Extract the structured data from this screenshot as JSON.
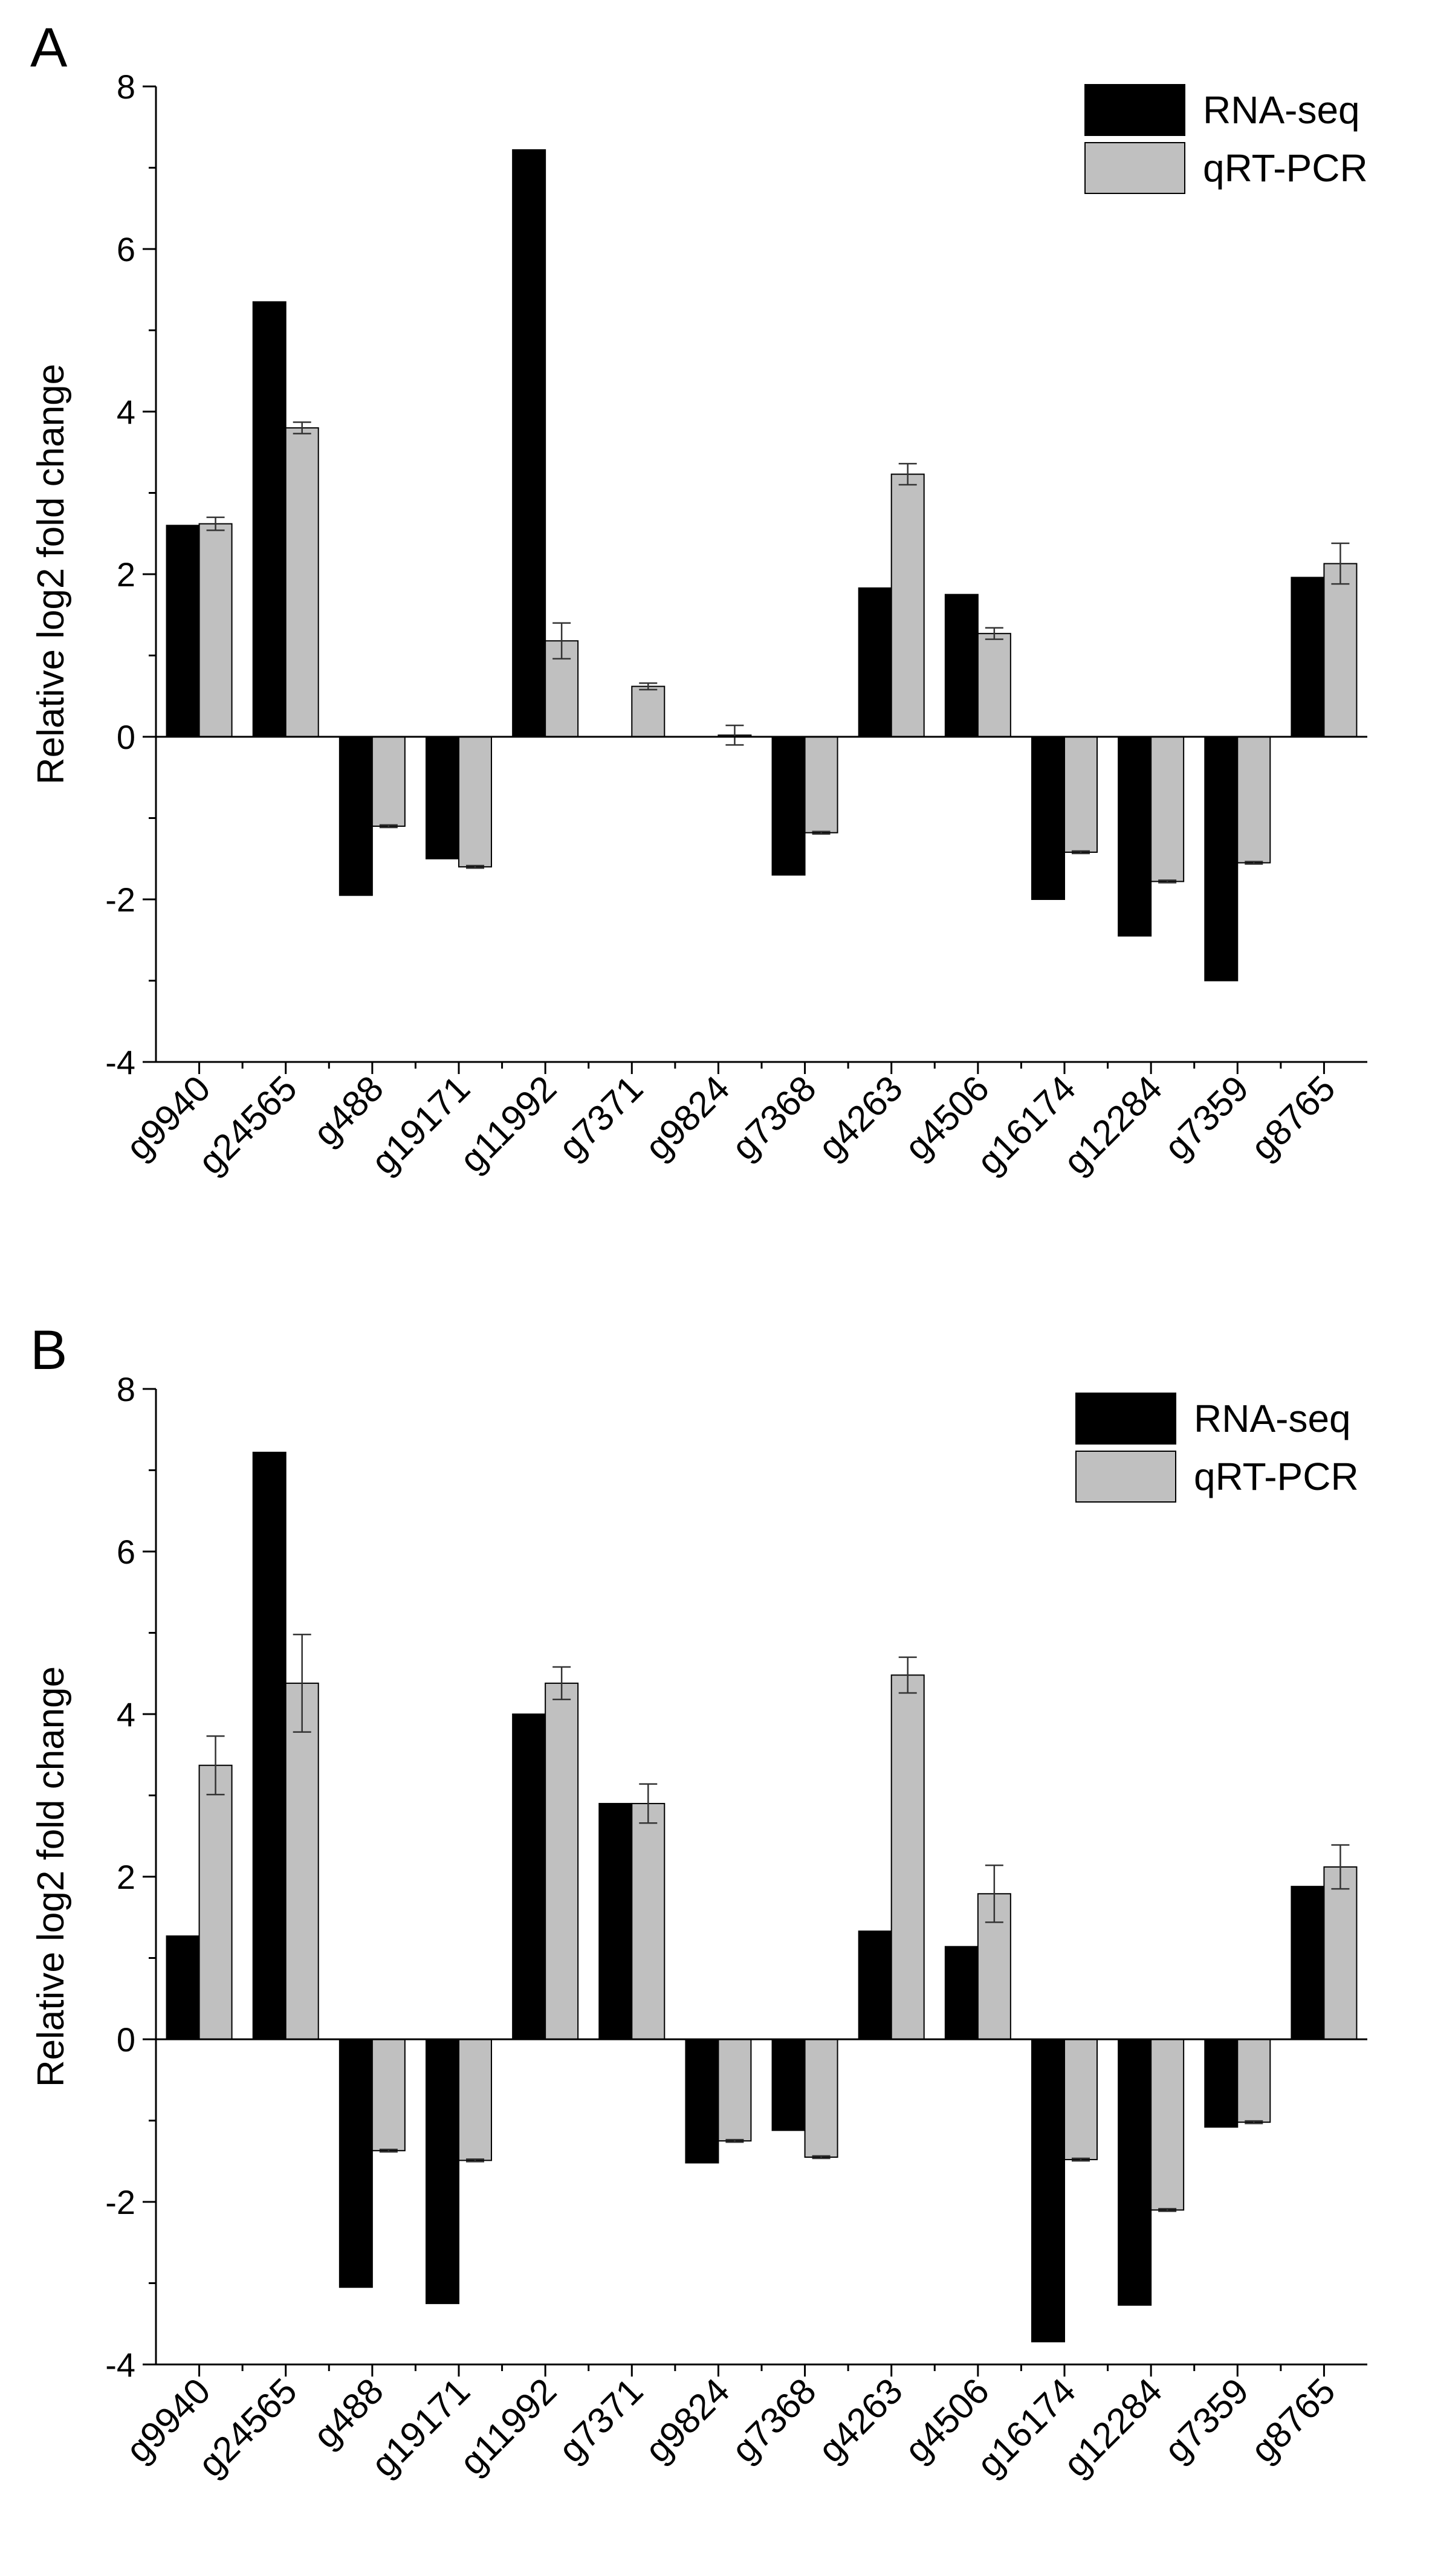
{
  "chart_data": [
    {
      "type": "bar",
      "panel_label": "A",
      "ylabel": "Relative log2 fold change",
      "ylim": [
        -4,
        8
      ],
      "yticks": [
        "8",
        "6",
        "4",
        "2",
        "0",
        "-2",
        "-4"
      ],
      "categories": [
        "g9940",
        "g24565",
        "g488",
        "g19171",
        "g11992",
        "g7371",
        "g9824",
        "g7368",
        "g4263",
        "g4506",
        "g16174",
        "g12284",
        "g7359",
        "g8765"
      ],
      "series": [
        {
          "name": "RNA-seq",
          "color": "#000000",
          "values": [
            2.6,
            5.35,
            -1.95,
            -1.5,
            7.22,
            0,
            0,
            -1.7,
            1.83,
            1.75,
            -2.0,
            -2.45,
            -3.0,
            1.96
          ]
        },
        {
          "name": "qRT-PCR",
          "color": "#c0c0c0",
          "values": [
            2.62,
            3.8,
            -1.1,
            -1.6,
            1.18,
            0.62,
            0.02,
            -1.18,
            3.23,
            1.27,
            -1.42,
            -1.78,
            -1.55,
            2.13
          ],
          "errors": [
            0.08,
            0.07,
            0,
            0,
            0.22,
            0.04,
            0.12,
            0,
            0.13,
            0.07,
            0,
            0,
            0,
            0.25
          ]
        }
      ],
      "legend_position": "top-right"
    },
    {
      "type": "bar",
      "panel_label": "B",
      "ylabel": "Relative log2 fold change",
      "ylim": [
        -4,
        8
      ],
      "yticks": [
        "8",
        "6",
        "4",
        "2",
        "0",
        "-2",
        "-4"
      ],
      "categories": [
        "g9940",
        "g24565",
        "g488",
        "g19171",
        "g11992",
        "g7371",
        "g9824",
        "g7368",
        "g4263",
        "g4506",
        "g16174",
        "g12284",
        "g7359",
        "g8765"
      ],
      "series": [
        {
          "name": "RNA-seq",
          "color": "#000000",
          "values": [
            1.27,
            7.22,
            -3.05,
            -3.25,
            4.0,
            2.9,
            -1.52,
            -1.12,
            1.33,
            1.14,
            -3.72,
            -3.27,
            -1.08,
            1.88
          ]
        },
        {
          "name": "qRT-PCR",
          "color": "#c0c0c0",
          "values": [
            3.37,
            4.38,
            -1.37,
            -1.49,
            4.38,
            2.9,
            -1.25,
            -1.45,
            4.48,
            1.79,
            -1.48,
            -2.1,
            -1.02,
            2.12
          ],
          "errors": [
            0.36,
            0.6,
            0,
            0,
            0.2,
            0.24,
            0,
            0,
            0.22,
            0.35,
            0,
            0,
            0,
            0.27
          ]
        }
      ],
      "legend_position": "top-right"
    }
  ]
}
